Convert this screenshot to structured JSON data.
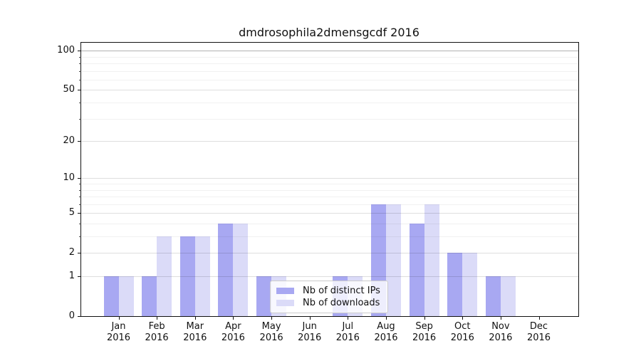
{
  "title": "dmdrosophila2dmensgcdf 2016",
  "colors": {
    "distinct_ips": "#a8a8f2",
    "downloads": "#dbdbf8",
    "axis": "#111111"
  },
  "legend": {
    "items": [
      {
        "label": "Nb of distinct IPs",
        "color_key": "distinct_ips"
      },
      {
        "label": "Nb of downloads",
        "color_key": "downloads"
      }
    ]
  },
  "chart_data": {
    "type": "bar",
    "title": "dmdrosophila2dmensgcdf 2016",
    "scale": "log1p",
    "grid": "on",
    "legend_position": "bottom-center",
    "year_label": "2016",
    "categories": [
      "Jan",
      "Feb",
      "Mar",
      "Apr",
      "May",
      "Jun",
      "Jul",
      "Aug",
      "Sep",
      "Oct",
      "Nov",
      "Dec"
    ],
    "series": [
      {
        "name": "Nb of distinct IPs",
        "color_key": "distinct_ips",
        "values": [
          1,
          1,
          3,
          4,
          1,
          0,
          1,
          6,
          4,
          2,
          1,
          0
        ]
      },
      {
        "name": "Nb of downloads",
        "color_key": "downloads",
        "values": [
          1,
          3,
          3,
          4,
          1,
          0,
          1,
          6,
          6,
          2,
          1,
          0
        ]
      }
    ],
    "yticks_major": [
      0,
      1,
      2,
      5,
      10,
      20,
      50,
      100
    ],
    "yticks_minor": [
      3,
      4,
      6,
      7,
      8,
      9,
      30,
      40,
      60,
      70,
      80,
      90
    ],
    "ylim": [
      0,
      115
    ],
    "xlabel": "",
    "ylabel": ""
  }
}
